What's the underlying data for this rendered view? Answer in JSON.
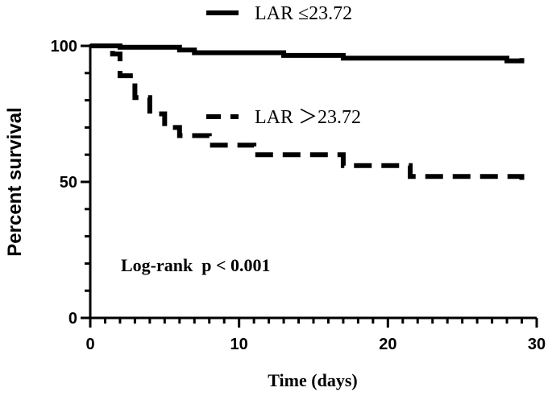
{
  "chart_data": {
    "type": "line",
    "xlabel": "Time (days)",
    "ylabel": "Percent survival",
    "xlim": [
      0,
      30
    ],
    "ylim": [
      0,
      100
    ],
    "x_ticks": [
      0,
      10,
      20,
      30
    ],
    "y_ticks": [
      0,
      50,
      100
    ],
    "x_tick_labels": [
      "0",
      "10",
      "20",
      "30"
    ],
    "y_tick_labels": [
      "0",
      "50",
      "100"
    ],
    "grid": false,
    "series": [
      {
        "name": "LAR ≤23.72",
        "line_style": "solid",
        "color": "#000000",
        "x": [
          0,
          2,
          6,
          7,
          13,
          17,
          28,
          29
        ],
        "y": [
          100,
          99.5,
          98.5,
          97.5,
          96.5,
          95.5,
          94.5,
          95.5
        ]
      },
      {
        "name": "LAR ＞23.72",
        "line_style": "dashed",
        "color": "#000000",
        "x": [
          0,
          1.5,
          2,
          3,
          4,
          5,
          6,
          8,
          11,
          17,
          21.5,
          29
        ],
        "y": [
          100,
          97,
          89,
          81,
          75,
          70,
          67,
          63.5,
          60,
          56,
          52,
          48.5
        ]
      }
    ],
    "legend": {
      "placement": "top-right"
    },
    "annotation": "Log-rank  p < 0.001"
  }
}
